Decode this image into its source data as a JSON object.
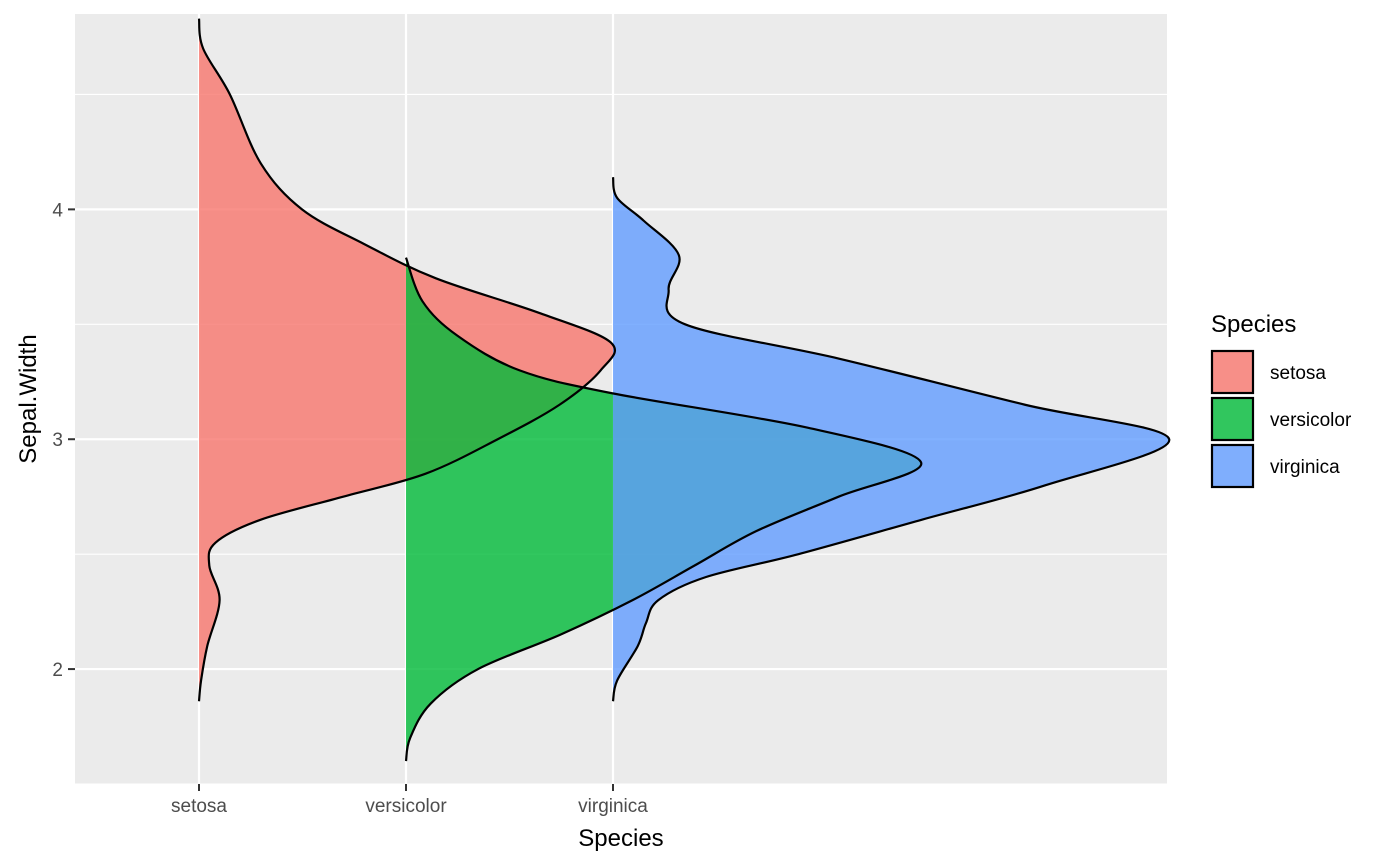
{
  "chart_data": {
    "type": "area",
    "subtype": "half-violin density (ridge)",
    "xlabel": "Species",
    "ylabel": "Sepal.Width",
    "categories": [
      "setosa",
      "versicolor",
      "virginica"
    ],
    "ylim": [
      1.5,
      4.85
    ],
    "yticks": [
      2,
      3,
      4
    ],
    "grid": true,
    "legend": {
      "title": "Species",
      "position": "right",
      "entries": [
        "setosa",
        "versicolor",
        "virginica"
      ]
    },
    "series": [
      {
        "name": "setosa",
        "color": "#F8766D",
        "y_range": [
          1.86,
          4.83
        ],
        "profile": [
          [
            1.86,
            0.0
          ],
          [
            1.95,
            0.01
          ],
          [
            2.1,
            0.04
          ],
          [
            2.3,
            0.1
          ],
          [
            2.45,
            0.05
          ],
          [
            2.55,
            0.08
          ],
          [
            2.65,
            0.3
          ],
          [
            2.75,
            0.7
          ],
          [
            2.85,
            1.1
          ],
          [
            3.0,
            1.45
          ],
          [
            3.15,
            1.75
          ],
          [
            3.3,
            1.95
          ],
          [
            3.42,
            2.0
          ],
          [
            3.55,
            1.65
          ],
          [
            3.7,
            1.15
          ],
          [
            3.85,
            0.8
          ],
          [
            4.0,
            0.5
          ],
          [
            4.2,
            0.3
          ],
          [
            4.5,
            0.15
          ],
          [
            4.7,
            0.02
          ],
          [
            4.83,
            0.0
          ]
        ]
      },
      {
        "name": "versicolor",
        "color": "#00BA38",
        "y_range": [
          1.6,
          3.79
        ],
        "profile": [
          [
            1.6,
            0.0
          ],
          [
            1.7,
            0.02
          ],
          [
            1.85,
            0.12
          ],
          [
            2.0,
            0.35
          ],
          [
            2.15,
            0.75
          ],
          [
            2.3,
            1.1
          ],
          [
            2.45,
            1.4
          ],
          [
            2.6,
            1.7
          ],
          [
            2.75,
            2.1
          ],
          [
            2.9,
            2.5
          ],
          [
            3.05,
            1.95
          ],
          [
            3.2,
            1.0
          ],
          [
            3.3,
            0.55
          ],
          [
            3.45,
            0.25
          ],
          [
            3.6,
            0.08
          ],
          [
            3.79,
            0.0
          ]
        ]
      },
      {
        "name": "virginica",
        "color": "#619CFF",
        "y_range": [
          1.86,
          4.14
        ],
        "profile": [
          [
            1.86,
            0.0
          ],
          [
            1.95,
            0.02
          ],
          [
            2.1,
            0.12
          ],
          [
            2.2,
            0.16
          ],
          [
            2.3,
            0.22
          ],
          [
            2.4,
            0.45
          ],
          [
            2.5,
            0.9
          ],
          [
            2.65,
            1.5
          ],
          [
            2.8,
            2.1
          ],
          [
            3.0,
            2.7
          ],
          [
            3.15,
            2.0
          ],
          [
            3.35,
            1.1
          ],
          [
            3.5,
            0.35
          ],
          [
            3.65,
            0.27
          ],
          [
            3.8,
            0.32
          ],
          [
            3.95,
            0.15
          ],
          [
            4.05,
            0.02
          ],
          [
            4.14,
            0.0
          ]
        ]
      }
    ]
  }
}
